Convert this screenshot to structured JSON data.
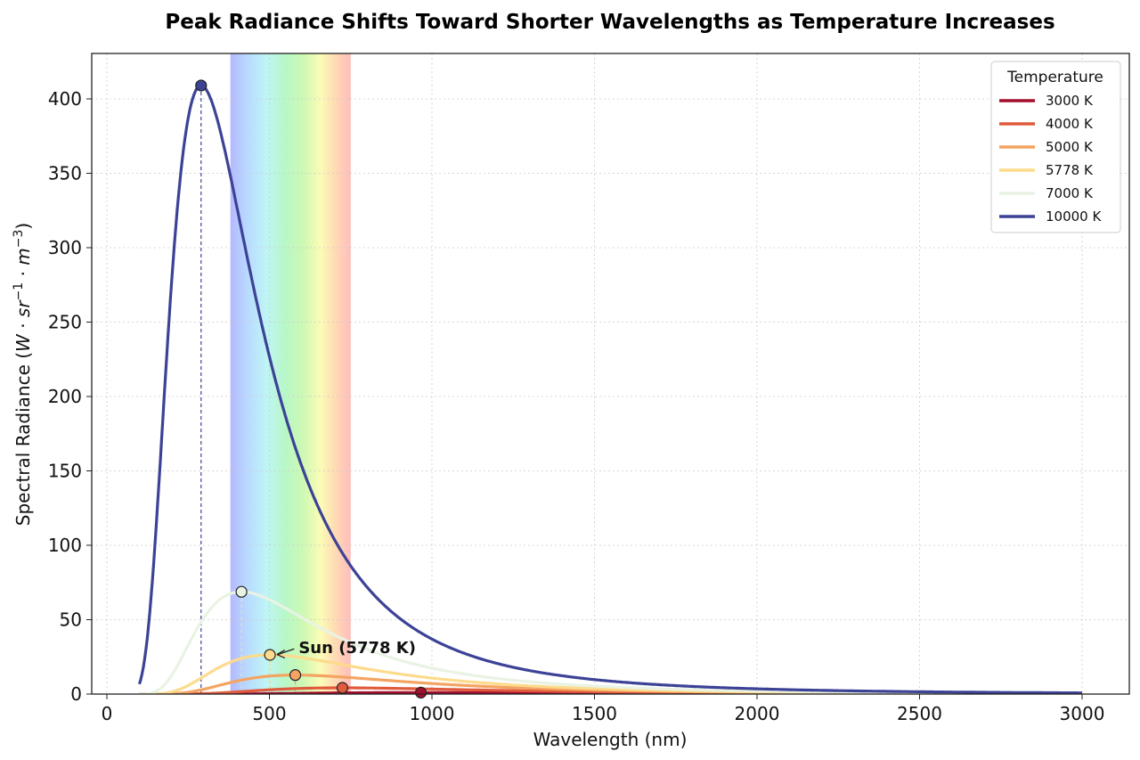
{
  "chart_data": {
    "type": "line",
    "title": "Peak Radiance Shifts Toward Shorter Wavelengths as Temperature Increases",
    "xlabel": "Wavelength (nm)",
    "ylabel": "Spectral Radiance (W·sr⁻¹·m⁻³)",
    "xlim": [
      -30,
      3150
    ],
    "ylim": [
      0,
      428
    ],
    "xticks": [
      0,
      500,
      1000,
      1500,
      2000,
      2500,
      3000
    ],
    "yticks": [
      0,
      50,
      100,
      150,
      200,
      250,
      300,
      350,
      400
    ],
    "grid": true,
    "legend": {
      "title": "Temperature",
      "position": "upper right"
    },
    "visible_band_nm": [
      380,
      750
    ],
    "x_range_nm": [
      100,
      3000
    ],
    "series": [
      {
        "name": "3000 K",
        "temperature": 3000,
        "color": "#a50f2e",
        "peak_nm": 966,
        "peak_value": 1.0
      },
      {
        "name": "4000 K",
        "temperature": 4000,
        "color": "#e05a3c",
        "peak_nm": 724,
        "peak_value": 4.2
      },
      {
        "name": "5000 K",
        "temperature": 5000,
        "color": "#f4a462",
        "peak_nm": 580,
        "peak_value": 13
      },
      {
        "name": "5778 K",
        "temperature": 5778,
        "color": "#fddb8c",
        "peak_nm": 501,
        "peak_value": 26
      },
      {
        "name": "7000 K",
        "temperature": 7000,
        "color": "#e9f3e3",
        "peak_nm": 414,
        "peak_value": 68
      },
      {
        "name": "10000 K",
        "temperature": 10000,
        "color": "#3c4296",
        "peak_nm": 290,
        "peak_value": 409
      }
    ],
    "annotations": [
      {
        "text": "Sun (5778 K)",
        "x": 501,
        "y": 26,
        "text_x": 590,
        "text_y": 31
      }
    ]
  }
}
